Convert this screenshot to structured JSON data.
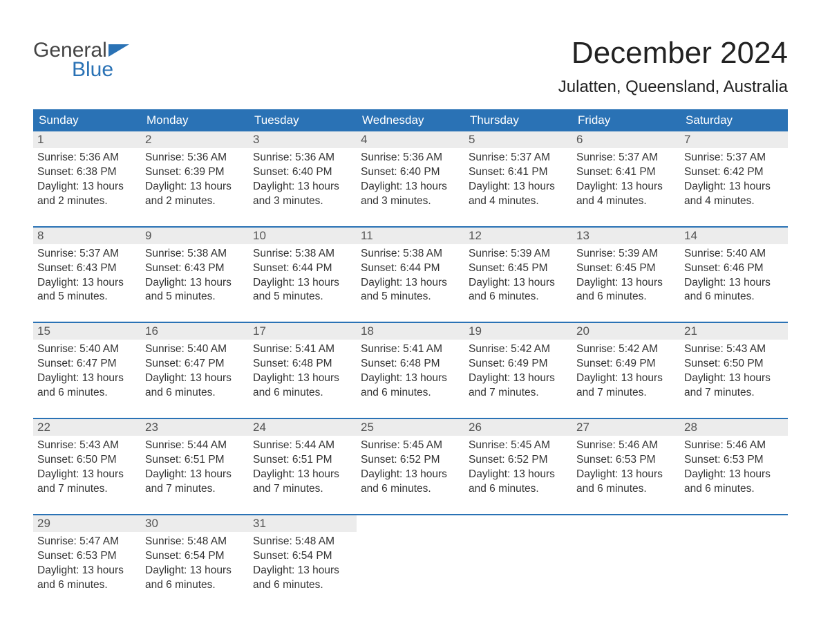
{
  "brand": {
    "line1": "General",
    "line2": "Blue",
    "accent": "#2a72b5"
  },
  "title": "December 2024",
  "location": "Julatten, Queensland, Australia",
  "dow": [
    "Sunday",
    "Monday",
    "Tuesday",
    "Wednesday",
    "Thursday",
    "Friday",
    "Saturday"
  ],
  "colors": {
    "header_bg": "#2a72b5",
    "header_text": "#ffffff",
    "daynum_bg": "#ececec",
    "week_border": "#2a72b5",
    "body_text": "#333333"
  },
  "weeks": [
    [
      {
        "n": "1",
        "sr": "Sunrise: 5:36 AM",
        "ss": "Sunset: 6:38 PM",
        "d1": "Daylight: 13 hours",
        "d2": "and 2 minutes."
      },
      {
        "n": "2",
        "sr": "Sunrise: 5:36 AM",
        "ss": "Sunset: 6:39 PM",
        "d1": "Daylight: 13 hours",
        "d2": "and 2 minutes."
      },
      {
        "n": "3",
        "sr": "Sunrise: 5:36 AM",
        "ss": "Sunset: 6:40 PM",
        "d1": "Daylight: 13 hours",
        "d2": "and 3 minutes."
      },
      {
        "n": "4",
        "sr": "Sunrise: 5:36 AM",
        "ss": "Sunset: 6:40 PM",
        "d1": "Daylight: 13 hours",
        "d2": "and 3 minutes."
      },
      {
        "n": "5",
        "sr": "Sunrise: 5:37 AM",
        "ss": "Sunset: 6:41 PM",
        "d1": "Daylight: 13 hours",
        "d2": "and 4 minutes."
      },
      {
        "n": "6",
        "sr": "Sunrise: 5:37 AM",
        "ss": "Sunset: 6:41 PM",
        "d1": "Daylight: 13 hours",
        "d2": "and 4 minutes."
      },
      {
        "n": "7",
        "sr": "Sunrise: 5:37 AM",
        "ss": "Sunset: 6:42 PM",
        "d1": "Daylight: 13 hours",
        "d2": "and 4 minutes."
      }
    ],
    [
      {
        "n": "8",
        "sr": "Sunrise: 5:37 AM",
        "ss": "Sunset: 6:43 PM",
        "d1": "Daylight: 13 hours",
        "d2": "and 5 minutes."
      },
      {
        "n": "9",
        "sr": "Sunrise: 5:38 AM",
        "ss": "Sunset: 6:43 PM",
        "d1": "Daylight: 13 hours",
        "d2": "and 5 minutes."
      },
      {
        "n": "10",
        "sr": "Sunrise: 5:38 AM",
        "ss": "Sunset: 6:44 PM",
        "d1": "Daylight: 13 hours",
        "d2": "and 5 minutes."
      },
      {
        "n": "11",
        "sr": "Sunrise: 5:38 AM",
        "ss": "Sunset: 6:44 PM",
        "d1": "Daylight: 13 hours",
        "d2": "and 5 minutes."
      },
      {
        "n": "12",
        "sr": "Sunrise: 5:39 AM",
        "ss": "Sunset: 6:45 PM",
        "d1": "Daylight: 13 hours",
        "d2": "and 6 minutes."
      },
      {
        "n": "13",
        "sr": "Sunrise: 5:39 AM",
        "ss": "Sunset: 6:45 PM",
        "d1": "Daylight: 13 hours",
        "d2": "and 6 minutes."
      },
      {
        "n": "14",
        "sr": "Sunrise: 5:40 AM",
        "ss": "Sunset: 6:46 PM",
        "d1": "Daylight: 13 hours",
        "d2": "and 6 minutes."
      }
    ],
    [
      {
        "n": "15",
        "sr": "Sunrise: 5:40 AM",
        "ss": "Sunset: 6:47 PM",
        "d1": "Daylight: 13 hours",
        "d2": "and 6 minutes."
      },
      {
        "n": "16",
        "sr": "Sunrise: 5:40 AM",
        "ss": "Sunset: 6:47 PM",
        "d1": "Daylight: 13 hours",
        "d2": "and 6 minutes."
      },
      {
        "n": "17",
        "sr": "Sunrise: 5:41 AM",
        "ss": "Sunset: 6:48 PM",
        "d1": "Daylight: 13 hours",
        "d2": "and 6 minutes."
      },
      {
        "n": "18",
        "sr": "Sunrise: 5:41 AM",
        "ss": "Sunset: 6:48 PM",
        "d1": "Daylight: 13 hours",
        "d2": "and 6 minutes."
      },
      {
        "n": "19",
        "sr": "Sunrise: 5:42 AM",
        "ss": "Sunset: 6:49 PM",
        "d1": "Daylight: 13 hours",
        "d2": "and 7 minutes."
      },
      {
        "n": "20",
        "sr": "Sunrise: 5:42 AM",
        "ss": "Sunset: 6:49 PM",
        "d1": "Daylight: 13 hours",
        "d2": "and 7 minutes."
      },
      {
        "n": "21",
        "sr": "Sunrise: 5:43 AM",
        "ss": "Sunset: 6:50 PM",
        "d1": "Daylight: 13 hours",
        "d2": "and 7 minutes."
      }
    ],
    [
      {
        "n": "22",
        "sr": "Sunrise: 5:43 AM",
        "ss": "Sunset: 6:50 PM",
        "d1": "Daylight: 13 hours",
        "d2": "and 7 minutes."
      },
      {
        "n": "23",
        "sr": "Sunrise: 5:44 AM",
        "ss": "Sunset: 6:51 PM",
        "d1": "Daylight: 13 hours",
        "d2": "and 7 minutes."
      },
      {
        "n": "24",
        "sr": "Sunrise: 5:44 AM",
        "ss": "Sunset: 6:51 PM",
        "d1": "Daylight: 13 hours",
        "d2": "and 7 minutes."
      },
      {
        "n": "25",
        "sr": "Sunrise: 5:45 AM",
        "ss": "Sunset: 6:52 PM",
        "d1": "Daylight: 13 hours",
        "d2": "and 6 minutes."
      },
      {
        "n": "26",
        "sr": "Sunrise: 5:45 AM",
        "ss": "Sunset: 6:52 PM",
        "d1": "Daylight: 13 hours",
        "d2": "and 6 minutes."
      },
      {
        "n": "27",
        "sr": "Sunrise: 5:46 AM",
        "ss": "Sunset: 6:53 PM",
        "d1": "Daylight: 13 hours",
        "d2": "and 6 minutes."
      },
      {
        "n": "28",
        "sr": "Sunrise: 5:46 AM",
        "ss": "Sunset: 6:53 PM",
        "d1": "Daylight: 13 hours",
        "d2": "and 6 minutes."
      }
    ],
    [
      {
        "n": "29",
        "sr": "Sunrise: 5:47 AM",
        "ss": "Sunset: 6:53 PM",
        "d1": "Daylight: 13 hours",
        "d2": "and 6 minutes."
      },
      {
        "n": "30",
        "sr": "Sunrise: 5:48 AM",
        "ss": "Sunset: 6:54 PM",
        "d1": "Daylight: 13 hours",
        "d2": "and 6 minutes."
      },
      {
        "n": "31",
        "sr": "Sunrise: 5:48 AM",
        "ss": "Sunset: 6:54 PM",
        "d1": "Daylight: 13 hours",
        "d2": "and 6 minutes."
      },
      null,
      null,
      null,
      null
    ]
  ]
}
